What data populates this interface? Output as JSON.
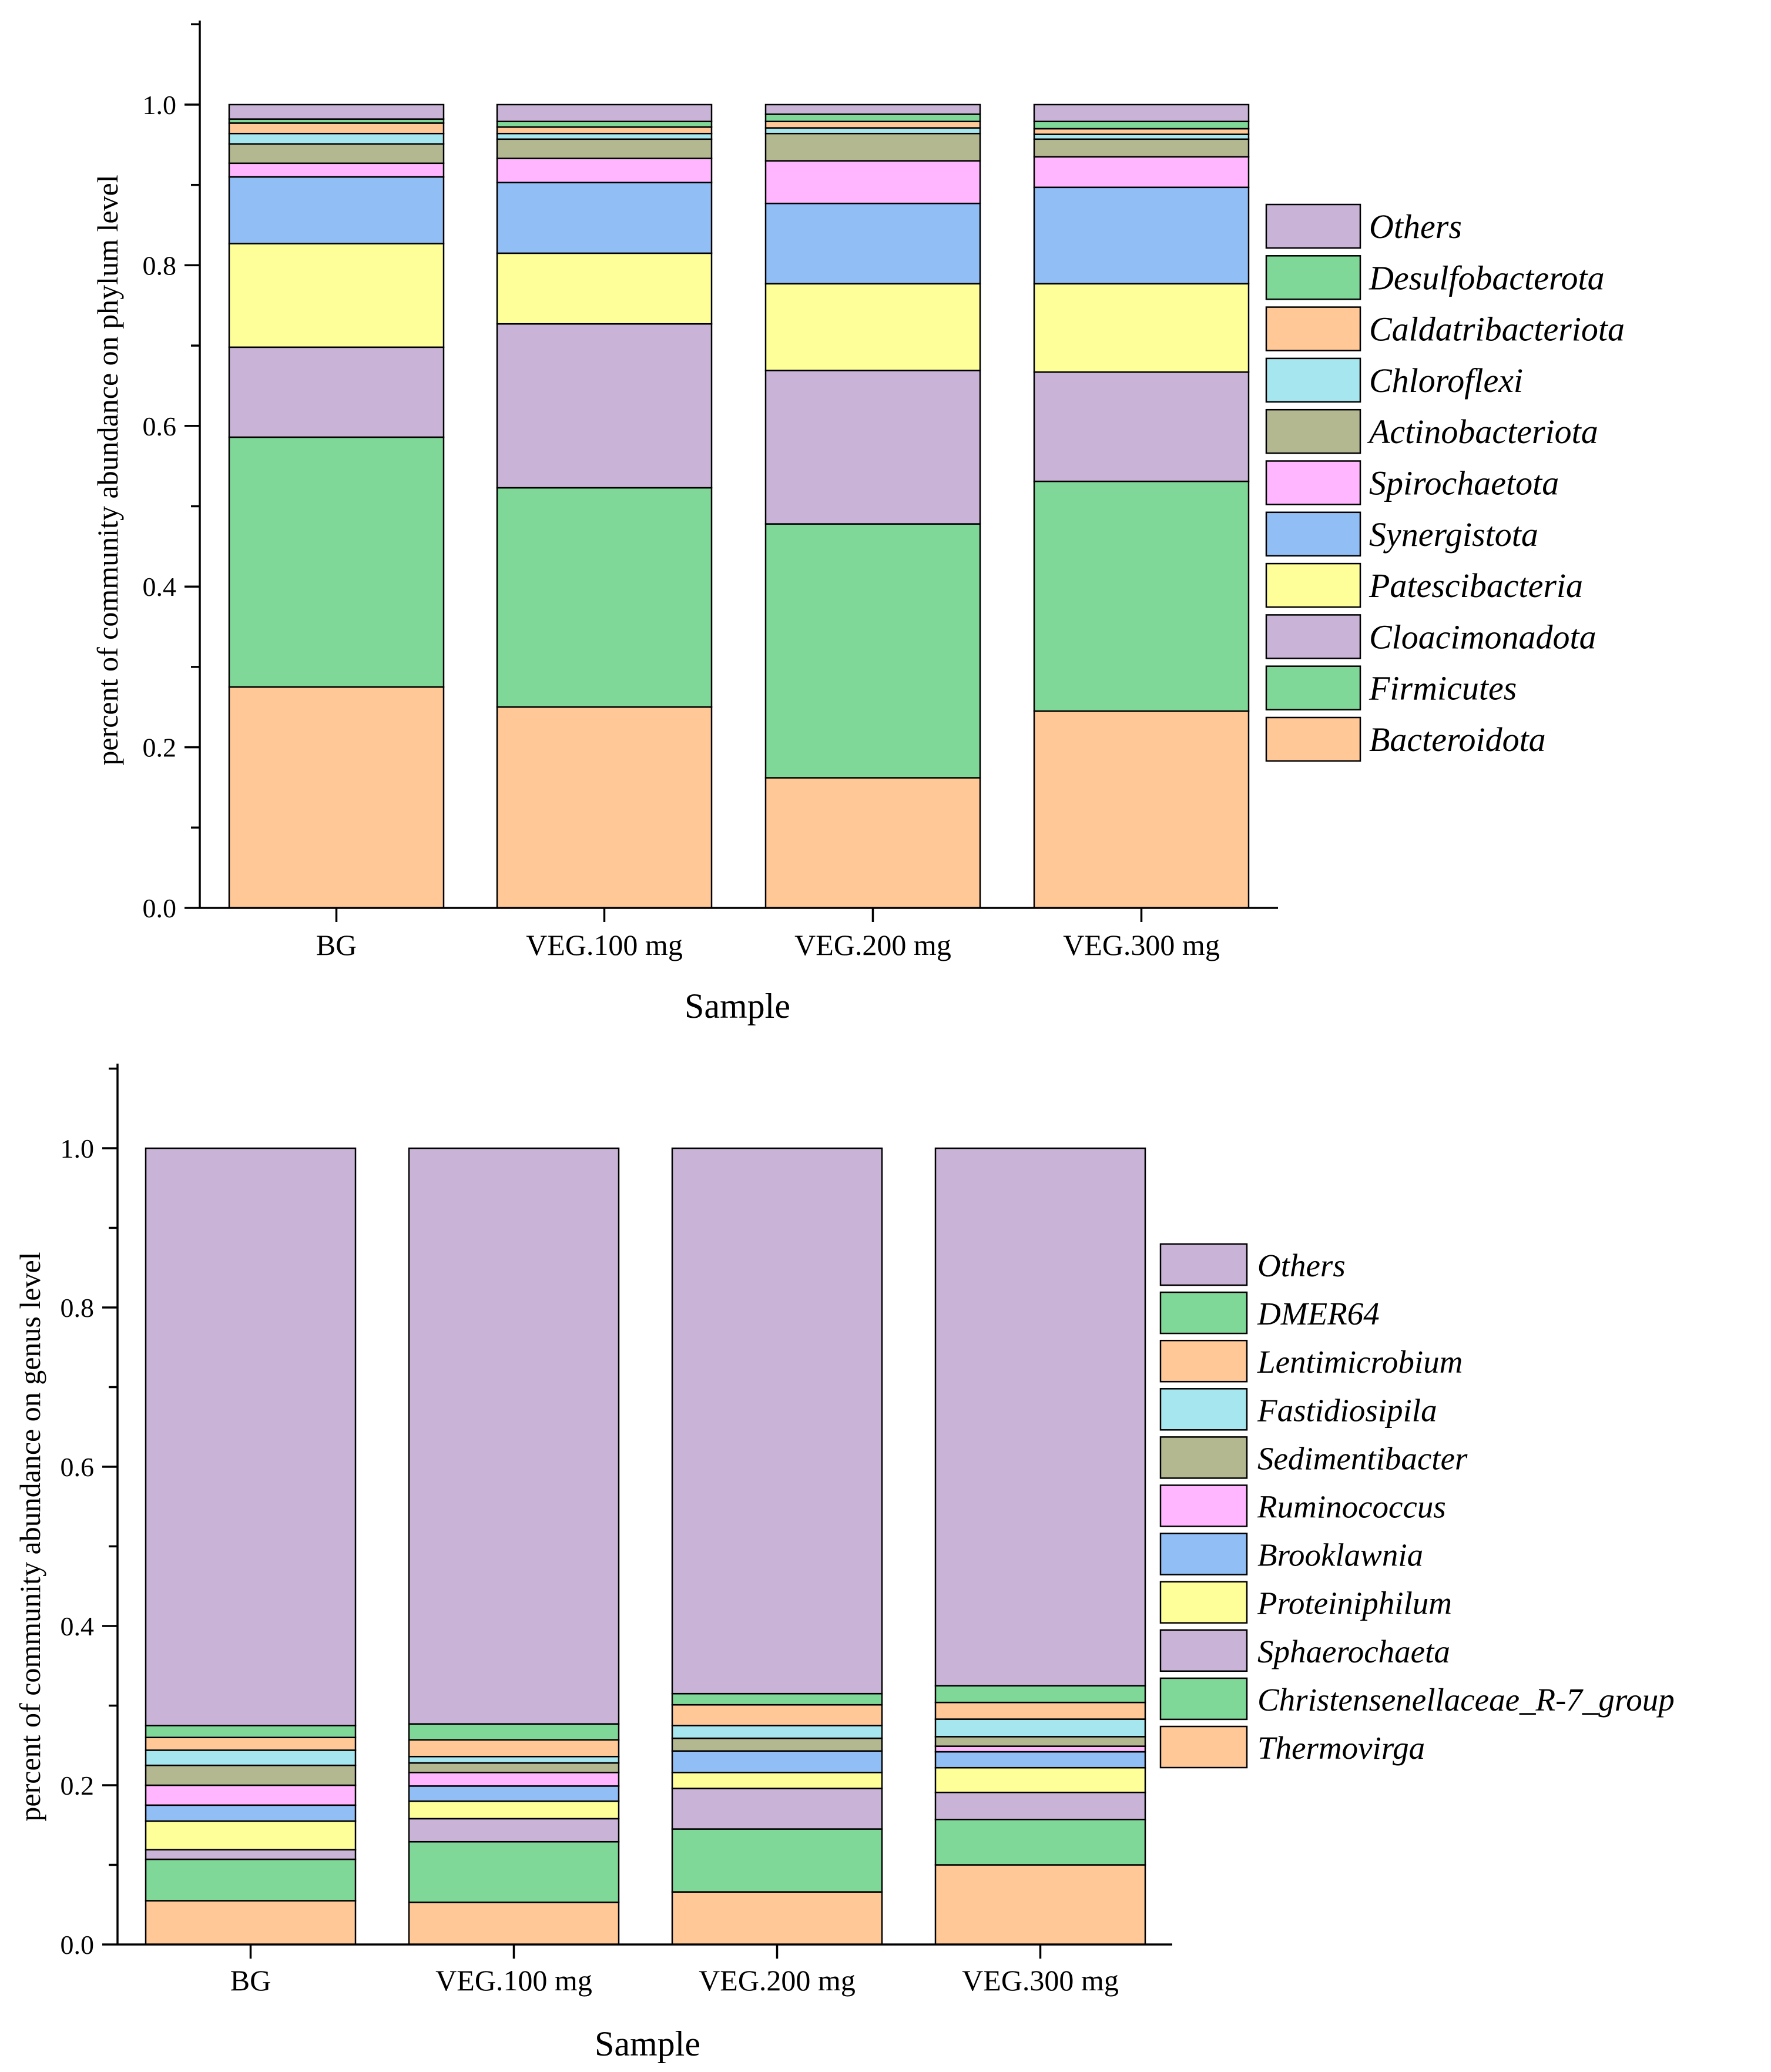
{
  "chart_data": [
    {
      "type": "bar",
      "stacked": true,
      "title": "",
      "xlabel": "Sample",
      "ylabel": "percent of community abundance on phylum level",
      "ylim": [
        0,
        1.1
      ],
      "yticks": [
        "0.0",
        "0.2",
        "0.4",
        "0.6",
        "0.8",
        "1.0"
      ],
      "categories": [
        "BG",
        "VEG.100 mg",
        "VEG.200 mg",
        "VEG.300 mg"
      ],
      "legend_position": "right",
      "series": [
        {
          "name": "Bacteroidota",
          "color": "#FFC896",
          "values": [
            0.275,
            0.25,
            0.162,
            0.245
          ]
        },
        {
          "name": "Firmicutes",
          "color": "#7FD898",
          "values": [
            0.311,
            0.273,
            0.316,
            0.286
          ]
        },
        {
          "name": "Cloacimonadota",
          "color": "#C9B4D8",
          "values": [
            0.112,
            0.204,
            0.191,
            0.136
          ]
        },
        {
          "name": "Patescibacteria",
          "color": "#FFFF99",
          "values": [
            0.129,
            0.088,
            0.108,
            0.11
          ]
        },
        {
          "name": "Synergistota",
          "color": "#90BEF5",
          "values": [
            0.083,
            0.088,
            0.1,
            0.12
          ]
        },
        {
          "name": "Spirochaetota",
          "color": "#FFB6FF",
          "values": [
            0.017,
            0.03,
            0.053,
            0.038
          ]
        },
        {
          "name": "Actinobacteriota",
          "color": "#B3B891",
          "values": [
            0.024,
            0.024,
            0.034,
            0.022
          ]
        },
        {
          "name": "Chloroflexi",
          "color": "#A6E6EE",
          "values": [
            0.013,
            0.007,
            0.007,
            0.006
          ]
        },
        {
          "name": "Caldatribacteriota",
          "color": "#FFC896",
          "values": [
            0.013,
            0.008,
            0.008,
            0.007
          ]
        },
        {
          "name": "Desulfobacterota",
          "color": "#7FD898",
          "values": [
            0.005,
            0.007,
            0.009,
            0.009
          ]
        },
        {
          "name": "Others",
          "color": "#C9B4D8",
          "values": [
            0.018,
            0.021,
            0.012,
            0.021
          ]
        }
      ]
    },
    {
      "type": "bar",
      "stacked": true,
      "title": "",
      "xlabel": "Sample",
      "ylabel": "percent of community abundance on genus level",
      "ylim": [
        0,
        1.1
      ],
      "yticks": [
        "0.0",
        "0.2",
        "0.4",
        "0.6",
        "0.8",
        "1.0"
      ],
      "categories": [
        "BG",
        "VEG.100 mg",
        "VEG.200 mg",
        "VEG.300 mg"
      ],
      "legend_position": "right",
      "series": [
        {
          "name": "Thermovirga",
          "color": "#FFC896",
          "values": [
            0.055,
            0.053,
            0.066,
            0.1
          ]
        },
        {
          "name": "Christensenellaceae_R-7_group",
          "color": "#7FD898",
          "values": [
            0.052,
            0.076,
            0.079,
            0.057
          ]
        },
        {
          "name": "Sphaerochaeta",
          "color": "#C9B4D8",
          "values": [
            0.012,
            0.029,
            0.051,
            0.034
          ]
        },
        {
          "name": "Proteiniphilum",
          "color": "#FFFF99",
          "values": [
            0.036,
            0.022,
            0.02,
            0.031
          ]
        },
        {
          "name": "Brooklawnia",
          "color": "#90BEF5",
          "values": [
            0.02,
            0.019,
            0.027,
            0.02
          ]
        },
        {
          "name": "Ruminococcus",
          "color": "#FFB6FF",
          "values": [
            0.025,
            0.017,
            0.0,
            0.007
          ]
        },
        {
          "name": "Sedimentibacter",
          "color": "#B3B891",
          "values": [
            0.025,
            0.012,
            0.016,
            0.012
          ]
        },
        {
          "name": "Fastidiosipila",
          "color": "#A6E6EE",
          "values": [
            0.019,
            0.008,
            0.016,
            0.022
          ]
        },
        {
          "name": "Lentimicrobium",
          "color": "#FFC896",
          "values": [
            0.016,
            0.021,
            0.026,
            0.021
          ]
        },
        {
          "name": "DMER64",
          "color": "#7FD898",
          "values": [
            0.015,
            0.02,
            0.014,
            0.021
          ]
        },
        {
          "name": "Others",
          "color": "#C9B4D8",
          "values": [
            0.725,
            0.723,
            0.685,
            0.675
          ]
        }
      ]
    }
  ]
}
